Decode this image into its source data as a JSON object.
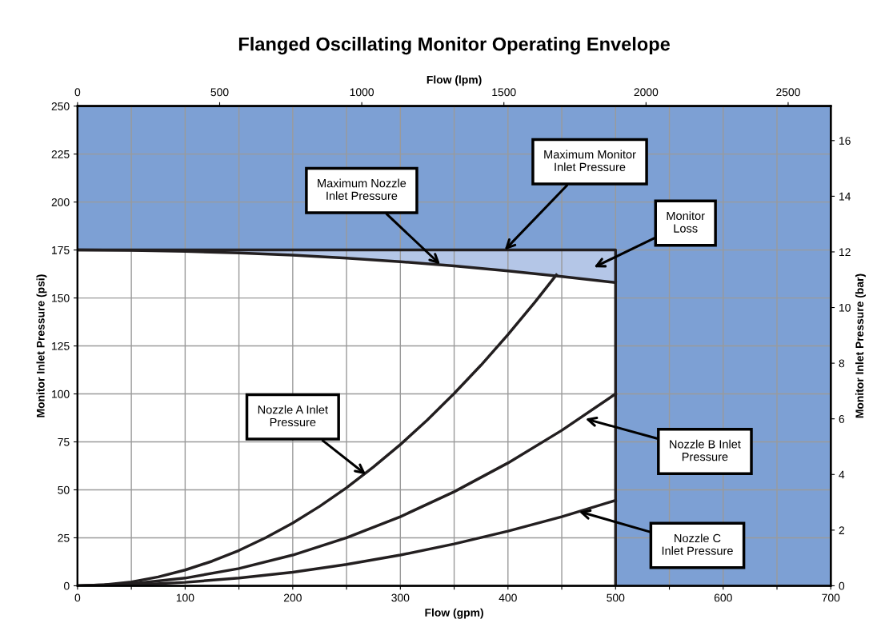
{
  "chart_data": {
    "type": "line",
    "title": "Flanged Oscillating Monitor Operating Envelope",
    "xlabel": "Flow (gpm)",
    "ylabel": "Monitor Inlet Pressure (psi)",
    "x2label": "Flow (lpm)",
    "y2label": "Monitor Inlet Pressure (bar)",
    "xlim": [
      0,
      700
    ],
    "ylim": [
      0,
      250
    ],
    "xticks": [
      0,
      {
        "value": 50,
        "label": null
      },
      100,
      {
        "value": 150,
        "label": null
      },
      200,
      {
        "value": 250,
        "label": null
      },
      300,
      {
        "value": 350,
        "label": null
      },
      400,
      {
        "value": 450,
        "label": null
      },
      500,
      {
        "value": 550,
        "label": null
      },
      600,
      {
        "value": 650,
        "label": null
      },
      700
    ],
    "yticks": [
      0,
      25,
      50,
      75,
      100,
      125,
      150,
      175,
      200,
      225,
      250
    ],
    "x2lim": [
      0,
      2650
    ],
    "x2ticks": [
      0,
      500,
      1000,
      1500,
      2000,
      2500
    ],
    "y2lim": [
      0,
      17.24
    ],
    "y2ticks": [
      0,
      2,
      4,
      6,
      8,
      10,
      12,
      14,
      16
    ],
    "grid": true,
    "marker": "none",
    "line_style": "solid",
    "bands": [
      {
        "axis": "y",
        "from": 175,
        "to": 250,
        "color": "#7da0d4"
      },
      {
        "axis": "x",
        "from": 500,
        "to": 700,
        "color": "#7da0d4"
      }
    ],
    "series": [
      {
        "color": "#231f20",
        "x": [
          0,
          50,
          100,
          150,
          200,
          250,
          300,
          350,
          400,
          450,
          500
        ],
        "values": [
          175,
          174.8,
          174.3,
          173.5,
          172.3,
          170.8,
          168.9,
          166.7,
          164.1,
          161.2,
          158
        ],
        "lower": [
          175,
          174.8,
          174.3,
          173.5,
          172.3,
          170.8,
          168.9,
          166.7,
          164.1,
          161.2,
          158
        ],
        "upper": [
          175,
          175,
          175,
          175,
          175,
          175,
          175,
          175,
          175,
          175,
          175
        ]
      },
      {
        "color": "#231f20",
        "x": [
          0,
          500,
          500
        ],
        "values": [
          175,
          175,
          0
        ]
      },
      {
        "color": "#231f20",
        "x": [
          0,
          25,
          50,
          75,
          100,
          125,
          150,
          175,
          200,
          225,
          250,
          275,
          300,
          325,
          350,
          375,
          400,
          425,
          445
        ],
        "values": [
          0,
          0.5,
          2.0,
          4.6,
          8.2,
          12.8,
          18.4,
          25.1,
          32.7,
          41.4,
          51.1,
          61.9,
          73.6,
          86.4,
          100.2,
          115.0,
          130.9,
          147.8,
          162
        ]
      },
      {
        "color": "#231f20",
        "x": [
          0,
          50,
          100,
          150,
          200,
          250,
          300,
          350,
          400,
          450,
          500
        ],
        "values": [
          0,
          1,
          4,
          9,
          16,
          25,
          36,
          49,
          64,
          81,
          100
        ]
      },
      {
        "color": "#231f20",
        "x": [
          0,
          50,
          100,
          150,
          200,
          250,
          300,
          350,
          400,
          450,
          500
        ],
        "values": [
          0,
          0.4,
          1.8,
          4,
          7.1,
          11.1,
          16,
          21.8,
          28.5,
          36,
          44.5
        ]
      }
    ],
    "annotations": [
      {
        "text": "Maximum Nozzle\nInlet Pressure",
        "x": 337,
        "y": 167.5
      },
      {
        "text": "Maximum Monitor\nInlet Pressure",
        "x": 397,
        "y": 175
      },
      "Monitor\nLoss",
      {
        "text": "Nozzle A Inlet\nPressure",
        "x": 268,
        "y": 58
      },
      {
        "text": "Nozzle B Inlet\nPressure",
        "x": 472,
        "y": 87
      },
      {
        "text": "Nozzle C\nInlet Pressure",
        "x": 466,
        "y": 38.7
      }
    ]
  }
}
